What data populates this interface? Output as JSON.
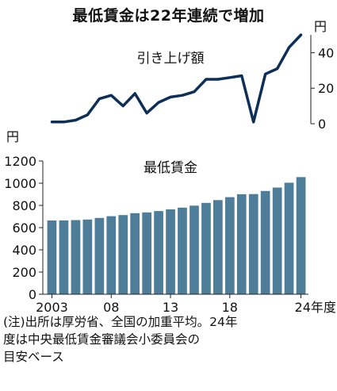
{
  "title": "最低賃金は22年連続で増加",
  "chart_data": [
    {
      "type": "line",
      "title": "引き上げ額",
      "unit": "円",
      "ylim": [
        0,
        50
      ],
      "yticks": [
        0,
        20,
        40
      ],
      "x": [
        2003,
        2004,
        2005,
        2006,
        2007,
        2008,
        2009,
        2010,
        2011,
        2012,
        2013,
        2014,
        2015,
        2016,
        2017,
        2018,
        2019,
        2020,
        2021,
        2022,
        2023,
        2024
      ],
      "values": [
        1,
        1,
        2,
        5,
        14,
        16,
        10,
        17,
        6,
        12,
        15,
        16,
        18,
        25,
        25,
        26,
        27,
        1,
        28,
        31,
        43,
        50
      ]
    },
    {
      "type": "bar",
      "title": "最低賃金",
      "unit": "円",
      "ylim": [
        0,
        1200
      ],
      "yticks": [
        0,
        200,
        400,
        600,
        800,
        1000,
        1200
      ],
      "x": [
        2003,
        2004,
        2005,
        2006,
        2007,
        2008,
        2009,
        2010,
        2011,
        2012,
        2013,
        2014,
        2015,
        2016,
        2017,
        2018,
        2019,
        2020,
        2021,
        2022,
        2023,
        2024
      ],
      "values": [
        664,
        665,
        668,
        673,
        687,
        703,
        713,
        730,
        737,
        749,
        764,
        780,
        798,
        823,
        848,
        874,
        901,
        902,
        930,
        961,
        1004,
        1055
      ],
      "xtick_labels": [
        {
          "year": 2003,
          "label": "2003"
        },
        {
          "year": 2008,
          "label": "08"
        },
        {
          "year": 2013,
          "label": "13"
        },
        {
          "year": 2018,
          "label": "18"
        },
        {
          "year": 2024,
          "label": "24年度"
        }
      ],
      "bar_color": "#4e7d99"
    }
  ],
  "line_color": "#0d2f57",
  "note": [
    "(注)出所は厚労省、全国の加重平均。24年",
    "度は中央最低賃金審議会小委員会の",
    "目安ベース"
  ]
}
